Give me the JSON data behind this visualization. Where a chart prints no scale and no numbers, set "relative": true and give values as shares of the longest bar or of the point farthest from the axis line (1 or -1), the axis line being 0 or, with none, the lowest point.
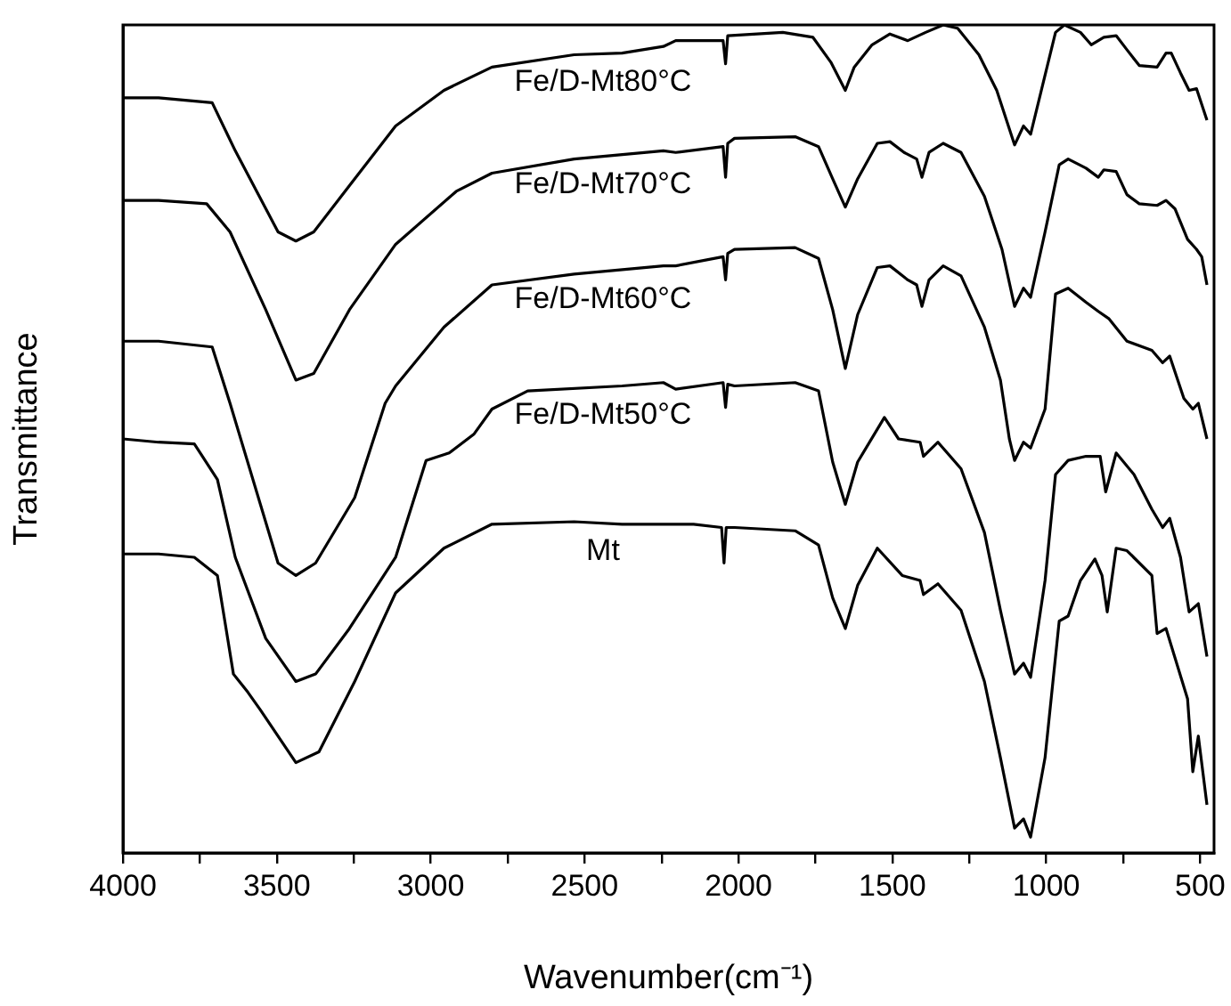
{
  "chart_data": {
    "type": "line",
    "xlabel": "Wavenumber(cm⁻¹)",
    "ylabel": "Transmittance",
    "relative": true,
    "xlim": [
      4000,
      455
    ],
    "xticks": [
      4000,
      {
        "value": 3750,
        "label": null
      },
      3500,
      {
        "value": 3250,
        "label": null
      },
      3000,
      {
        "value": 2750,
        "label": null
      },
      2500,
      {
        "value": 2250,
        "label": null
      },
      2000,
      {
        "value": 1750,
        "label": null
      },
      1500,
      {
        "value": 1250,
        "label": null
      },
      1000,
      {
        "value": 750,
        "label": null
      },
      500
    ],
    "tick_labels": "x",
    "grid": false,
    "legend": false,
    "marker": "none",
    "line_style": "solid",
    "series": [
      {
        "name": "Fe/D-Mt80°C",
        "color": "#000000",
        "x": [
          4000,
          3884,
          3710,
          3635,
          3496,
          3438,
          3380,
          3264,
          3114,
          2957,
          2801,
          2534,
          2378,
          2244,
          2204,
          2050,
          2042,
          2035,
          1856,
          1758,
          1700,
          1653,
          1624,
          1566,
          1508,
          1450,
          1392,
          1335,
          1288,
          1219,
          1161,
          1103,
          1074,
          1051,
          1016,
          970,
          941,
          889,
          854,
          813,
          773,
          738,
          698,
          640,
          611,
          594,
          564,
          536,
          512,
          478
        ],
        "values": [
          0.912,
          0.912,
          0.906,
          0.848,
          0.75,
          0.739,
          0.75,
          0.806,
          0.878,
          0.921,
          0.949,
          0.964,
          0.966,
          0.974,
          0.981,
          0.981,
          0.953,
          0.987,
          0.991,
          0.985,
          0.955,
          0.921,
          0.949,
          0.976,
          0.989,
          0.981,
          0.991,
          1,
          0.996,
          0.964,
          0.921,
          0.855,
          0.878,
          0.868,
          0.921,
          0.991,
          1,
          0.991,
          0.976,
          0.985,
          0.987,
          0.97,
          0.951,
          0.949,
          0.966,
          0.966,
          0.942,
          0.921,
          0.923,
          0.885
        ]
      },
      {
        "name": "Fe/D-Mt70°C",
        "color": "#000000",
        "x": [
          4000,
          3884,
          3728,
          3652,
          3536,
          3438,
          3380,
          3264,
          3114,
          2917,
          2801,
          2534,
          2244,
          2204,
          2050,
          2042,
          2035,
          2013,
          1816,
          1740,
          1694,
          1653,
          1613,
          1549,
          1508,
          1462,
          1421,
          1404,
          1381,
          1335,
          1277,
          1201,
          1144,
          1103,
          1074,
          1051,
          1004,
          958,
          929,
          871,
          831,
          813,
          773,
          738,
          698,
          640,
          611,
          582,
          541,
          512,
          495,
          478
        ],
        "values": [
          0.788,
          0.788,
          0.784,
          0.75,
          0.656,
          0.571,
          0.579,
          0.656,
          0.735,
          0.799,
          0.821,
          0.838,
          0.848,
          0.846,
          0.853,
          0.816,
          0.857,
          0.863,
          0.865,
          0.853,
          0.814,
          0.78,
          0.814,
          0.857,
          0.859,
          0.846,
          0.838,
          0.816,
          0.846,
          0.857,
          0.846,
          0.793,
          0.729,
          0.66,
          0.682,
          0.671,
          0.75,
          0.831,
          0.838,
          0.827,
          0.816,
          0.825,
          0.823,
          0.795,
          0.784,
          0.782,
          0.788,
          0.778,
          0.741,
          0.729,
          0.72,
          0.686
        ]
      },
      {
        "name": "Fe/D-Mt60°C",
        "color": "#000000",
        "x": [
          4000,
          3884,
          3710,
          3652,
          3496,
          3438,
          3374,
          3247,
          3148,
          3114,
          2957,
          2801,
          2534,
          2244,
          2204,
          2050,
          2042,
          2035,
          2013,
          1816,
          1740,
          1694,
          1653,
          1613,
          1549,
          1508,
          1450,
          1421,
          1404,
          1381,
          1335,
          1277,
          1201,
          1149,
          1120,
          1103,
          1074,
          1051,
          1004,
          970,
          929,
          871,
          831,
          796,
          738,
          657,
          622,
          599,
          553,
          524,
          506,
          478
        ],
        "values": [
          0.618,
          0.618,
          0.611,
          0.543,
          0.35,
          0.335,
          0.35,
          0.429,
          0.543,
          0.564,
          0.635,
          0.686,
          0.699,
          0.709,
          0.709,
          0.72,
          0.692,
          0.724,
          0.729,
          0.731,
          0.718,
          0.656,
          0.585,
          0.65,
          0.707,
          0.709,
          0.692,
          0.686,
          0.66,
          0.692,
          0.709,
          0.697,
          0.635,
          0.571,
          0.5,
          0.474,
          0.496,
          0.489,
          0.536,
          0.675,
          0.682,
          0.665,
          0.654,
          0.645,
          0.618,
          0.607,
          0.592,
          0.6,
          0.549,
          0.536,
          0.543,
          0.5
        ]
      },
      {
        "name": "Fe/D-Mt50°C",
        "color": "#000000",
        "x": [
          4000,
          3884,
          3768,
          3693,
          3635,
          3536,
          3438,
          3374,
          3264,
          3114,
          3015,
          2940,
          2859,
          2801,
          2685,
          2378,
          2244,
          2204,
          2050,
          2042,
          2035,
          2013,
          1816,
          1740,
          1694,
          1653,
          1613,
          1526,
          1480,
          1410,
          1399,
          1352,
          1277,
          1201,
          1149,
          1103,
          1074,
          1051,
          1004,
          970,
          929,
          871,
          825,
          807,
          773,
          715,
          657,
          622,
          599,
          564,
          536,
          506,
          478
        ],
        "values": [
          0.5,
          0.496,
          0.494,
          0.451,
          0.357,
          0.259,
          0.207,
          0.216,
          0.271,
          0.357,
          0.474,
          0.483,
          0.506,
          0.536,
          0.558,
          0.564,
          0.568,
          0.56,
          0.568,
          0.538,
          0.566,
          0.564,
          0.568,
          0.558,
          0.472,
          0.421,
          0.472,
          0.526,
          0.5,
          0.496,
          0.479,
          0.496,
          0.464,
          0.387,
          0.293,
          0.216,
          0.229,
          0.212,
          0.329,
          0.457,
          0.474,
          0.479,
          0.479,
          0.436,
          0.483,
          0.457,
          0.415,
          0.393,
          0.404,
          0.357,
          0.291,
          0.301,
          0.237
        ]
      },
      {
        "name": "Mt",
        "color": "#000000",
        "x": [
          4000,
          3884,
          3768,
          3693,
          3641,
          3594,
          3554,
          3438,
          3363,
          3247,
          3114,
          2957,
          2801,
          2534,
          2378,
          2146,
          2055,
          2047,
          2040,
          2013,
          1816,
          1740,
          1694,
          1653,
          1613,
          1549,
          1468,
          1410,
          1399,
          1352,
          1277,
          1201,
          1149,
          1103,
          1074,
          1051,
          1004,
          958,
          929,
          889,
          842,
          819,
          802,
          773,
          738,
          657,
          640,
          611,
          541,
          524,
          506,
          478
        ],
        "values": [
          0.361,
          0.361,
          0.357,
          0.335,
          0.216,
          0.194,
          0.173,
          0.109,
          0.122,
          0.207,
          0.314,
          0.368,
          0.397,
          0.4,
          0.397,
          0.397,
          0.393,
          0.35,
          0.393,
          0.393,
          0.389,
          0.372,
          0.308,
          0.271,
          0.323,
          0.368,
          0.335,
          0.329,
          0.312,
          0.325,
          0.293,
          0.207,
          0.115,
          0.03,
          0.041,
          0.019,
          0.115,
          0.28,
          0.286,
          0.329,
          0.355,
          0.335,
          0.291,
          0.368,
          0.365,
          0.335,
          0.265,
          0.271,
          0.186,
          0.098,
          0.141,
          0.058
        ]
      }
    ]
  }
}
